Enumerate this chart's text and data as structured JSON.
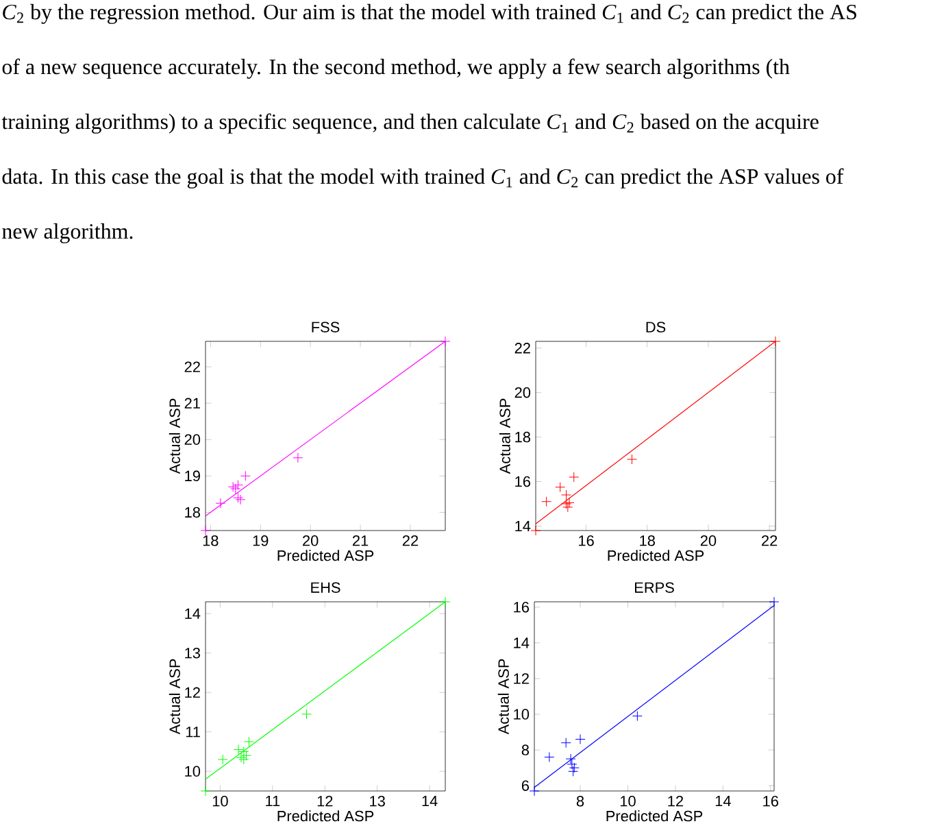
{
  "chart_data": [
    {
      "type": "other",
      "annotations": [
        "*C*$_{2}$ by the regression method. Our aim is that the model with trained *C*$_{1}$ and *C*$_{2}$ can predict the AS",
        "of a new sequence accurately. In the second method, we apply a few search algorithms (th",
        "training algorithms) to a specific sequence, and then calculate *C*$_{1}$ and *C*$_{2}$ based on the acquire",
        "data. In this case the goal is that the model with trained *C*$_{1}$ and *C*$_{2}$ can predict the ASP values of",
        "new algorithm."
      ]
    },
    {
      "type": "scatter",
      "title": "FSS",
      "xlabel": "Predicted ASP",
      "ylabel": "Actual ASP",
      "xlim": [
        17.9,
        22.7
      ],
      "ylim": [
        17.5,
        22.7
      ],
      "xticks": [
        18,
        19,
        20,
        21,
        22
      ],
      "yticks": [
        18,
        19,
        20,
        21,
        22
      ],
      "marker": "cross",
      "series": [
        {
          "type": "scatter",
          "color": "#ff00ff",
          "x": [
            17.9,
            18.2,
            18.45,
            18.55,
            18.5,
            18.6,
            18.55,
            18.7,
            19.75,
            22.7
          ],
          "values": [
            17.5,
            18.25,
            18.7,
            18.75,
            18.65,
            18.35,
            18.4,
            19.0,
            19.5,
            22.7
          ]
        },
        {
          "type": "line",
          "color": "#ff00ff",
          "marker": "none",
          "x": [
            17.9,
            22.7
          ],
          "values": [
            17.9,
            22.7
          ]
        }
      ]
    },
    {
      "type": "scatter",
      "title": "DS",
      "xlabel": "Predicted ASP",
      "ylabel": "Actual ASP",
      "xlim": [
        14.35,
        22.2
      ],
      "ylim": [
        13.8,
        22.3
      ],
      "xticks": [
        16,
        18,
        20,
        22
      ],
      "yticks": [
        14,
        16,
        18,
        20,
        22
      ],
      "marker": "cross",
      "series": [
        {
          "type": "scatter",
          "color": "#ff0000",
          "x": [
            14.35,
            14.7,
            15.15,
            15.35,
            15.35,
            15.4,
            15.45,
            15.6,
            17.5,
            22.2
          ],
          "values": [
            13.8,
            15.1,
            15.75,
            15.4,
            15.0,
            14.85,
            15.05,
            16.2,
            17.0,
            22.3
          ]
        },
        {
          "type": "line",
          "color": "#ff0000",
          "marker": "none",
          "x": [
            14.35,
            22.2
          ],
          "values": [
            14.1,
            22.3
          ]
        }
      ]
    },
    {
      "type": "scatter",
      "title": "EHS",
      "xlabel": "Predicted ASP",
      "ylabel": "Actual ASP",
      "xlim": [
        9.72,
        14.3
      ],
      "ylim": [
        9.5,
        14.3
      ],
      "xticks": [
        10,
        11,
        12,
        13,
        14
      ],
      "yticks": [
        10,
        11,
        12,
        13,
        14
      ],
      "marker": "cross",
      "series": [
        {
          "type": "scatter",
          "color": "#00ff00",
          "x": [
            9.72,
            10.05,
            10.35,
            10.45,
            10.4,
            10.45,
            10.5,
            10.55,
            11.65,
            14.3
          ],
          "values": [
            9.5,
            10.3,
            10.55,
            10.5,
            10.35,
            10.3,
            10.4,
            10.75,
            11.45,
            14.3
          ]
        },
        {
          "type": "line",
          "color": "#00ff00",
          "marker": "none",
          "x": [
            9.72,
            14.3
          ],
          "values": [
            9.8,
            14.3
          ]
        }
      ]
    },
    {
      "type": "scatter",
      "title": "ERPS",
      "xlabel": "Predicted ASP",
      "ylabel": "Actual ASP",
      "xlim": [
        6.07,
        16.15
      ],
      "ylim": [
        5.7,
        16.3
      ],
      "xticks": [
        8,
        10,
        12,
        14,
        16
      ],
      "yticks": [
        6,
        8,
        10,
        12,
        14,
        16
      ],
      "marker": "cross",
      "series": [
        {
          "type": "scatter",
          "color": "#0000ff",
          "x": [
            6.07,
            6.7,
            7.4,
            8.0,
            7.6,
            7.65,
            7.75,
            7.7,
            10.4,
            16.15
          ],
          "values": [
            5.7,
            7.6,
            8.4,
            8.6,
            7.5,
            7.2,
            7.0,
            6.8,
            9.9,
            16.3
          ]
        },
        {
          "type": "line",
          "color": "#0000ff",
          "marker": "none",
          "x": [
            6.07,
            16.15
          ],
          "values": [
            5.9,
            16.1
          ]
        }
      ]
    }
  ]
}
